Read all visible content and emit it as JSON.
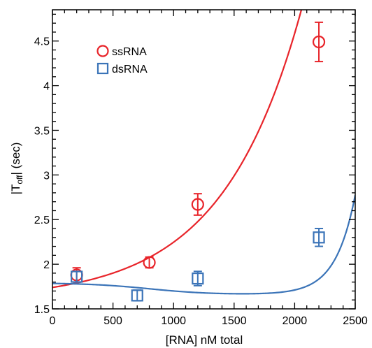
{
  "chart_data": {
    "type": "scatter",
    "title": "",
    "xlabel": "[RNA] nM total",
    "ylabel_main": "|T",
    "ylabel_sub": "off",
    "ylabel_rest": "| (sec)",
    "xlim": [
      0,
      2500
    ],
    "ylim": [
      1.5,
      4.85
    ],
    "xticks": [
      0,
      500,
      1000,
      1500,
      2000,
      2500
    ],
    "xtick_labels": [
      "0",
      "500",
      "1000",
      "1500",
      "2000",
      "2500"
    ],
    "yticks": [
      1.5,
      2,
      2.5,
      3,
      3.5,
      4,
      4.5
    ],
    "ytick_labels": [
      "1.5",
      "2",
      "2.5",
      "3",
      "3.5",
      "4",
      "4.5"
    ],
    "grid": false,
    "legend_position": "top-left",
    "series": [
      {
        "name": "ssRNA",
        "marker": "circle",
        "color": "#e8242a",
        "points": [
          {
            "x": 200,
            "y": 1.88,
            "err": 0.08
          },
          {
            "x": 800,
            "y": 2.02,
            "err": 0.06
          },
          {
            "x": 1200,
            "y": 2.67,
            "err": 0.12
          },
          {
            "x": 2200,
            "y": 4.49,
            "err": 0.22
          }
        ],
        "fit": {
          "a": 1.6,
          "b": 0.14,
          "k": 0.00153
        }
      },
      {
        "name": "dsRNA",
        "marker": "square",
        "color": "#3b74b8",
        "points": [
          {
            "x": 200,
            "y": 1.86,
            "err": 0.06
          },
          {
            "x": 700,
            "y": 1.65,
            "err": 0.06
          },
          {
            "x": 1200,
            "y": 1.84,
            "err": 0.08
          },
          {
            "x": 2200,
            "y": 2.3,
            "err": 0.1
          }
        ],
        "fit": {
          "base": 1.79,
          "dip": 0.13,
          "dipMid": 800,
          "dipWidth": 250,
          "rise": 1.115,
          "riseK": 0.0062,
          "riseX0": 2500
        }
      }
    ]
  }
}
